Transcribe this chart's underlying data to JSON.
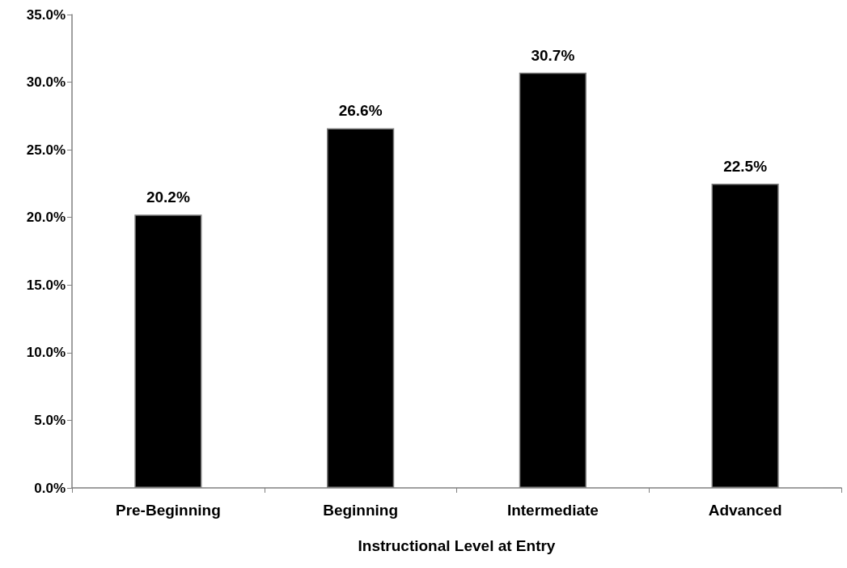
{
  "chart_data": {
    "type": "bar",
    "xlabel": "Instructional Level at Entry",
    "categories": [
      "Pre-Beginning",
      "Beginning",
      "Intermediate",
      "Advanced"
    ],
    "values": [
      20.2,
      26.6,
      30.7,
      22.5
    ],
    "color": "#000000",
    "value_labels": [
      "20.2%",
      "26.6%",
      "30.7%",
      "22.5%"
    ],
    "ylim": [
      0,
      35
    ],
    "yticks": [
      {
        "value": 0,
        "label": "0.0%"
      },
      {
        "value": 5,
        "label": "5.0%"
      },
      {
        "value": 10,
        "label": "10.0%"
      },
      {
        "value": 15,
        "label": "15.0%"
      },
      {
        "value": 20,
        "label": "20.0%"
      },
      {
        "value": 25,
        "label": "25.0%"
      },
      {
        "value": 30,
        "label": "30.0%"
      },
      {
        "value": 35,
        "label": "35.0%"
      }
    ],
    "grid": false
  }
}
